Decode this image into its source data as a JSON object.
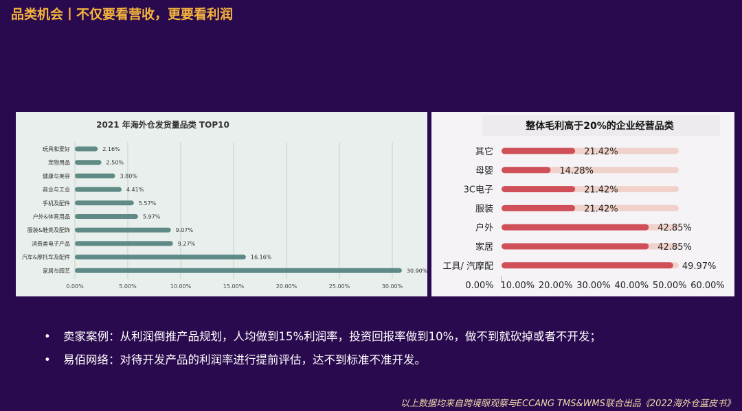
{
  "page": {
    "title": "品类机会丨不仅要看营收，更要看利润",
    "bullets": [
      "卖家案例：从利润倒推产品规划，人均做到15%利润率，投资回报率做到10%，做不到就砍掉或者不开发；",
      "易佰网络：对待开发产品的利润率进行提前评估，达不到标准不准开发。"
    ],
    "bullet_marker": "•",
    "footer": "以上数据均来自跨境眼观察与ECCANG TMS&WMS联合出品《2022海外仓蓝皮书》"
  },
  "colors": {
    "background": "#2a0a4e",
    "title": "#f5b43c",
    "left_bar": "#5f8a85",
    "right_bar": "#cf5058",
    "right_track": "#f1d2cb"
  },
  "chart_data": [
    {
      "type": "bar",
      "orientation": "horizontal",
      "title": "2021 年海外仓发货量品类 TOP10",
      "categories": [
        "玩具和爱好",
        "宠物用品",
        "健康与美容",
        "商业与工业",
        "手机及配件",
        "户外&体育用品",
        "服装&鞋类及配饰",
        "消费类电子产品",
        "汽车&摩托车及配件",
        "家居与园艺"
      ],
      "values": [
        2.16,
        2.5,
        3.8,
        4.41,
        5.57,
        5.97,
        9.07,
        9.27,
        16.16,
        30.9
      ],
      "value_labels": [
        "2.16%",
        "2.50%",
        "3.80%",
        "4.41%",
        "5.57%",
        "5.97%",
        "9.07%",
        "9.27%",
        "16.16%",
        "30.90%"
      ],
      "xlim": [
        0,
        30
      ],
      "xticks": [
        "0.00%",
        "5.00%",
        "10.00%",
        "15.00%",
        "20.00%",
        "25.00%",
        "30.00%"
      ],
      "grid": true
    },
    {
      "type": "bar",
      "orientation": "horizontal",
      "title": "整体毛利高于20%的企业经营品类",
      "categories": [
        "其它",
        "母婴",
        "3C电子",
        "服装",
        "户外",
        "家居",
        "工具/ 汽摩配"
      ],
      "values": [
        21.42,
        14.28,
        21.42,
        21.42,
        42.85,
        42.85,
        49.97
      ],
      "value_labels": [
        "21.42%",
        "14.28%",
        "21.42%",
        "21.42%",
        "42.85%",
        "42.85%",
        "49.97%"
      ],
      "xlim": [
        0,
        60
      ],
      "xticks": [
        "0.00%",
        "10.00%",
        "20.00%",
        "30.00%",
        "40.00%",
        "50.00%",
        "60.00%"
      ],
      "grid": false
    }
  ]
}
